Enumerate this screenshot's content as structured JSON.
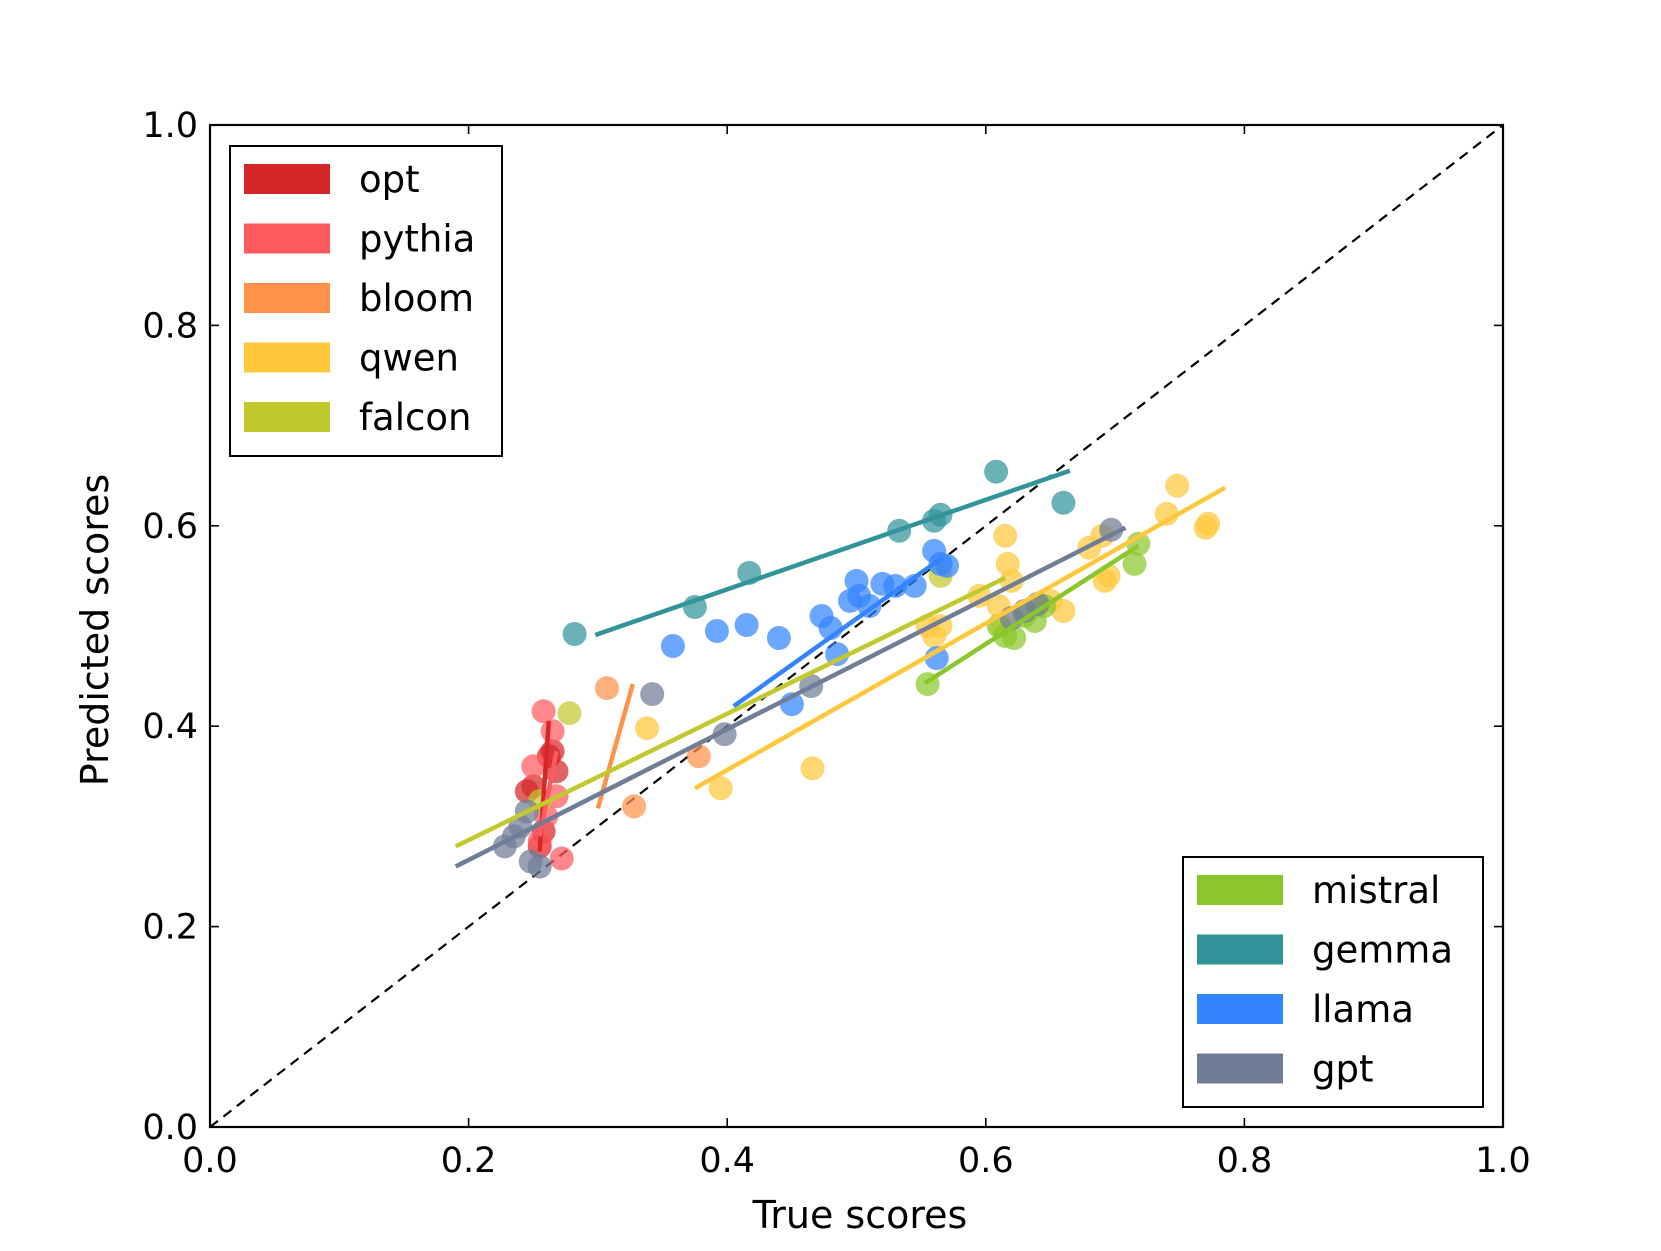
{
  "chart_data": {
    "type": "scatter",
    "title": "",
    "xlabel": "True scores",
    "ylabel": "Predicted scores",
    "xlim": [
      0.0,
      1.0
    ],
    "ylim": [
      0.0,
      1.0
    ],
    "xticks": [
      "0.0",
      "0.2",
      "0.4",
      "0.6",
      "0.8",
      "1.0"
    ],
    "yticks": [
      "0.0",
      "0.2",
      "0.4",
      "0.6",
      "0.8",
      "1.0"
    ],
    "tick_values": [
      0.0,
      0.2,
      0.4,
      0.6,
      0.8,
      1.0
    ],
    "reference_line": {
      "style": "dashed",
      "color": "#000000",
      "from": [
        0,
        0
      ],
      "to": [
        1,
        1
      ]
    },
    "legends": [
      {
        "placement": "upper-left",
        "series": [
          "opt",
          "pythia",
          "bloom",
          "qwen",
          "falcon"
        ]
      },
      {
        "placement": "lower-right",
        "series": [
          "mistral",
          "gemma",
          "llama",
          "gpt"
        ]
      }
    ],
    "series": [
      {
        "name": "opt",
        "color": "#d62728",
        "points": [
          [
            0.245,
            0.335
          ],
          [
            0.25,
            0.34
          ],
          [
            0.258,
            0.295
          ],
          [
            0.262,
            0.37
          ],
          [
            0.265,
            0.375
          ],
          [
            0.268,
            0.355
          ],
          [
            0.255,
            0.28
          ]
        ],
        "fit": [
          [
            0.255,
            0.275
          ],
          [
            0.262,
            0.405
          ]
        ]
      },
      {
        "name": "pythia",
        "color": "#ff5a5f",
        "points": [
          [
            0.258,
            0.415
          ],
          [
            0.265,
            0.395
          ],
          [
            0.25,
            0.36
          ],
          [
            0.268,
            0.33
          ],
          [
            0.26,
            0.31
          ],
          [
            0.255,
            0.285
          ],
          [
            0.272,
            0.268
          ]
        ],
        "fit": [
          [
            0.255,
            0.29
          ],
          [
            0.268,
            0.375
          ]
        ]
      },
      {
        "name": "bloom",
        "color": "#ff9148",
        "points": [
          [
            0.307,
            0.438
          ],
          [
            0.328,
            0.32
          ],
          [
            0.378,
            0.37
          ]
        ],
        "fit": [
          [
            0.3,
            0.318
          ],
          [
            0.327,
            0.442
          ]
        ]
      },
      {
        "name": "qwen",
        "color": "#ffc83c",
        "points": [
          [
            0.338,
            0.398
          ],
          [
            0.395,
            0.338
          ],
          [
            0.466,
            0.358
          ],
          [
            0.555,
            0.5
          ],
          [
            0.56,
            0.49
          ],
          [
            0.565,
            0.5
          ],
          [
            0.595,
            0.53
          ],
          [
            0.61,
            0.52
          ],
          [
            0.612,
            0.5
          ],
          [
            0.615,
            0.59
          ],
          [
            0.617,
            0.562
          ],
          [
            0.62,
            0.545
          ],
          [
            0.64,
            0.52
          ],
          [
            0.65,
            0.525
          ],
          [
            0.66,
            0.515
          ],
          [
            0.68,
            0.578
          ],
          [
            0.69,
            0.59
          ],
          [
            0.692,
            0.545
          ],
          [
            0.695,
            0.55
          ],
          [
            0.74,
            0.612
          ],
          [
            0.748,
            0.64
          ],
          [
            0.77,
            0.598
          ],
          [
            0.772,
            0.602
          ]
        ],
        "fit": [
          [
            0.375,
            0.338
          ],
          [
            0.785,
            0.638
          ]
        ]
      },
      {
        "name": "falcon",
        "color": "#c2c92e",
        "points": [
          [
            0.278,
            0.413
          ],
          [
            0.255,
            0.325
          ],
          [
            0.565,
            0.55
          ]
        ],
        "fit": [
          [
            0.19,
            0.28
          ],
          [
            0.615,
            0.548
          ]
        ]
      },
      {
        "name": "mistral",
        "color": "#8bc72b",
        "points": [
          [
            0.555,
            0.442
          ],
          [
            0.61,
            0.5
          ],
          [
            0.615,
            0.49
          ],
          [
            0.622,
            0.488
          ],
          [
            0.63,
            0.51
          ],
          [
            0.638,
            0.505
          ],
          [
            0.645,
            0.52
          ],
          [
            0.715,
            0.562
          ],
          [
            0.718,
            0.582
          ]
        ],
        "fit": [
          [
            0.553,
            0.443
          ],
          [
            0.718,
            0.58
          ]
        ]
      },
      {
        "name": "gemma",
        "color": "#31949b",
        "points": [
          [
            0.282,
            0.492
          ],
          [
            0.375,
            0.519
          ],
          [
            0.417,
            0.553
          ],
          [
            0.533,
            0.595
          ],
          [
            0.56,
            0.605
          ],
          [
            0.565,
            0.611
          ],
          [
            0.608,
            0.654
          ],
          [
            0.66,
            0.623
          ]
        ],
        "fit": [
          [
            0.298,
            0.491
          ],
          [
            0.665,
            0.655
          ]
        ]
      },
      {
        "name": "llama",
        "color": "#3385ff",
        "points": [
          [
            0.358,
            0.48
          ],
          [
            0.392,
            0.495
          ],
          [
            0.415,
            0.501
          ],
          [
            0.44,
            0.488
          ],
          [
            0.45,
            0.422
          ],
          [
            0.473,
            0.51
          ],
          [
            0.48,
            0.498
          ],
          [
            0.485,
            0.472
          ],
          [
            0.495,
            0.525
          ],
          [
            0.5,
            0.545
          ],
          [
            0.502,
            0.53
          ],
          [
            0.51,
            0.52
          ],
          [
            0.52,
            0.542
          ],
          [
            0.53,
            0.54
          ],
          [
            0.545,
            0.54
          ],
          [
            0.56,
            0.575
          ],
          [
            0.565,
            0.562
          ],
          [
            0.57,
            0.56
          ],
          [
            0.562,
            0.468
          ]
        ],
        "fit": [
          [
            0.405,
            0.42
          ],
          [
            0.565,
            0.567
          ]
        ]
      },
      {
        "name": "gpt",
        "color": "#6f7d96",
        "points": [
          [
            0.228,
            0.28
          ],
          [
            0.235,
            0.29
          ],
          [
            0.24,
            0.3
          ],
          [
            0.245,
            0.315
          ],
          [
            0.248,
            0.265
          ],
          [
            0.255,
            0.26
          ],
          [
            0.342,
            0.432
          ],
          [
            0.398,
            0.392
          ],
          [
            0.465,
            0.44
          ],
          [
            0.62,
            0.508
          ],
          [
            0.63,
            0.515
          ],
          [
            0.64,
            0.522
          ],
          [
            0.697,
            0.596
          ]
        ],
        "fit": [
          [
            0.19,
            0.26
          ],
          [
            0.708,
            0.598
          ]
        ]
      }
    ]
  }
}
